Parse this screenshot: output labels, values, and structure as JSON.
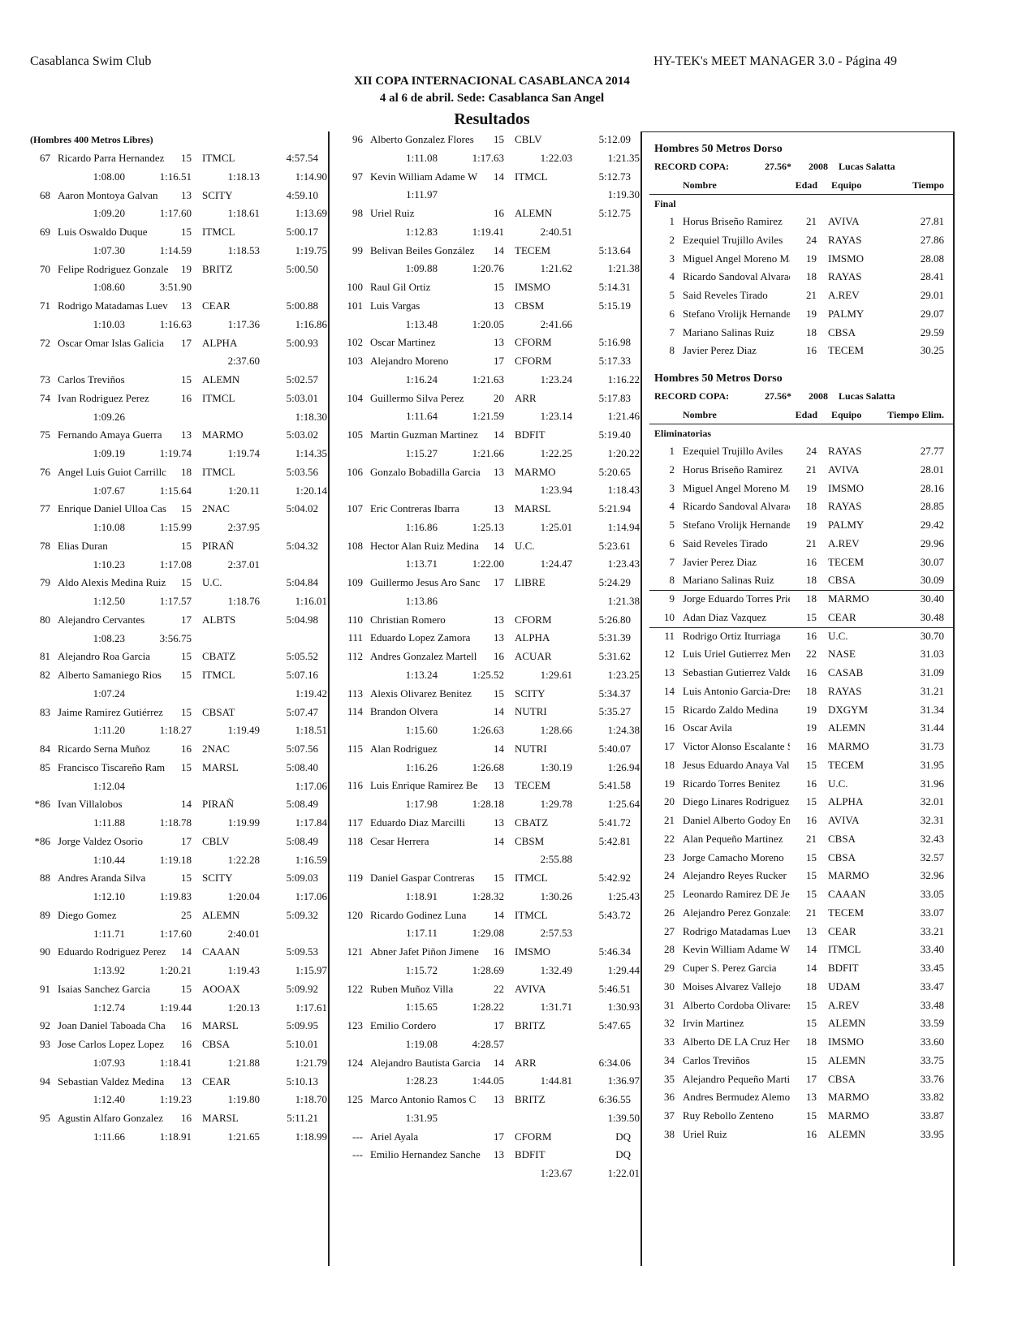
{
  "header": {
    "left": "Casablanca Swim Club",
    "right": "HY-TEK's MEET MANAGER 3.0 - Página 49",
    "title": "XII COPA INTERNACIONAL CASABLANCA 2014",
    "subtitle": "4 al 6 de abril. Sede: Casablanca San Angel",
    "heading": "Resultados"
  },
  "event_400": {
    "title": "(Hombres 400 Metros Libres)",
    "col1": [
      [
        "67",
        "Ricardo Parra Hernandez",
        "15",
        "ITMCL",
        "4:57.54",
        [
          "1:08.00",
          "1:16.51",
          "1:18.13",
          "1:14.90"
        ]
      ],
      [
        "68",
        "Aaron Montoya Galvan",
        "13",
        "SCITY",
        "4:59.10",
        [
          "1:09.20",
          "1:17.60",
          "1:18.61",
          "1:13.69"
        ]
      ],
      [
        "69",
        "Luis Oswaldo Duque",
        "15",
        "ITMCL",
        "5:00.17",
        [
          "1:07.30",
          "1:14.59",
          "1:18.53",
          "1:19.75"
        ]
      ],
      [
        "70",
        "Felipe Rodriguez Gonzale",
        "19",
        "BRITZ",
        "5:00.50",
        [
          "1:08.60",
          "3:51.90",
          null,
          null
        ]
      ],
      [
        "71",
        "Rodrigo Matadamas Luev",
        "13",
        "CEAR",
        "5:00.88",
        [
          "1:10.03",
          "1:16.63",
          "1:17.36",
          "1:16.86"
        ]
      ],
      [
        "72",
        "Oscar Omar Islas Galicia",
        "17",
        "ALPHA",
        "5:00.93",
        [
          null,
          null,
          "2:37.60",
          null
        ]
      ],
      [
        "73",
        "Carlos Treviños",
        "15",
        "ALEMN",
        "5:02.57"
      ],
      [
        "74",
        "Ivan Rodriguez Perez",
        "16",
        "ITMCL",
        "5:03.01",
        [
          "1:09.26",
          null,
          null,
          "1:18.30"
        ]
      ],
      [
        "75",
        "Fernando Amaya Guerra",
        "13",
        "MARMO",
        "5:03.02",
        [
          "1:09.19",
          "1:19.74",
          "1:19.74",
          "1:14.35"
        ]
      ],
      [
        "76",
        "Angel Luis Guiot Carrillc",
        "18",
        "ITMCL",
        "5:03.56",
        [
          "1:07.67",
          "1:15.64",
          "1:20.11",
          "1:20.14"
        ]
      ],
      [
        "77",
        "Enrique Daniel Ulloa Cas",
        "15",
        "2NAC",
        "5:04.02",
        [
          "1:10.08",
          "1:15.99",
          "2:37.95",
          null
        ]
      ],
      [
        "78",
        "Elias Duran",
        "15",
        "PIRAÑ",
        "5:04.32",
        [
          "1:10.23",
          "1:17.08",
          "2:37.01",
          null
        ]
      ],
      [
        "79",
        "Aldo Alexis Medina Ruiz",
        "15",
        "U.C.",
        "5:04.84",
        [
          "1:12.50",
          "1:17.57",
          "1:18.76",
          "1:16.01"
        ]
      ],
      [
        "80",
        "Alejandro Cervantes",
        "17",
        "ALBTS",
        "5:04.98",
        [
          "1:08.23",
          "3:56.75",
          null,
          null
        ]
      ],
      [
        "81",
        "Alejandro Roa Garcia",
        "15",
        "CBATZ",
        "5:05.52"
      ],
      [
        "82",
        "Alberto Samaniego Rios",
        "15",
        "ITMCL",
        "5:07.16",
        [
          "1:07.24",
          null,
          null,
          "1:19.42"
        ]
      ],
      [
        "83",
        "Jaime Ramirez Gutiérrez",
        "15",
        "CBSAT",
        "5:07.47",
        [
          "1:11.20",
          "1:18.27",
          "1:19.49",
          "1:18.51"
        ]
      ],
      [
        "84",
        "Ricardo Serna Muñoz",
        "16",
        "2NAC",
        "5:07.56"
      ],
      [
        "85",
        "Francisco Tiscareño Ram",
        "15",
        "MARSL",
        "5:08.40",
        [
          "1:12.04",
          null,
          null,
          "1:17.06"
        ]
      ],
      [
        "*86",
        "Ivan Villalobos",
        "14",
        "PIRAÑ",
        "5:08.49",
        [
          "1:11.88",
          "1:18.78",
          "1:19.99",
          "1:17.84"
        ]
      ],
      [
        "*86",
        "Jorge Valdez Osorio",
        "17",
        "CBLV",
        "5:08.49",
        [
          "1:10.44",
          "1:19.18",
          "1:22.28",
          "1:16.59"
        ]
      ],
      [
        "88",
        "Andres Aranda Silva",
        "15",
        "SCITY",
        "5:09.03",
        [
          "1:12.10",
          "1:19.83",
          "1:20.04",
          "1:17.06"
        ]
      ],
      [
        "89",
        "Diego Gomez",
        "25",
        "ALEMN",
        "5:09.32",
        [
          "1:11.71",
          "1:17.60",
          "2:40.01",
          null
        ]
      ],
      [
        "90",
        "Eduardo Rodriguez Perez",
        "14",
        "CAAAN",
        "5:09.53",
        [
          "1:13.92",
          "1:20.21",
          "1:19.43",
          "1:15.97"
        ]
      ],
      [
        "91",
        "Isaias Sanchez Garcia",
        "15",
        "AOOAX",
        "5:09.92",
        [
          "1:12.74",
          "1:19.44",
          "1:20.13",
          "1:17.61"
        ]
      ],
      [
        "92",
        "Joan Daniel Taboada Cha",
        "16",
        "MARSL",
        "5:09.95"
      ],
      [
        "93",
        "Jose Carlos Lopez Lopez",
        "16",
        "CBSA",
        "5:10.01",
        [
          "1:07.93",
          "1:18.41",
          "1:21.88",
          "1:21.79"
        ]
      ],
      [
        "94",
        "Sebastian Valdez Medina",
        "13",
        "CEAR",
        "5:10.13",
        [
          "1:12.40",
          "1:19.23",
          "1:19.80",
          "1:18.70"
        ]
      ],
      [
        "95",
        "Agustin Alfaro Gonzalez",
        "16",
        "MARSL",
        "5:11.21",
        [
          "1:11.66",
          "1:18.91",
          "1:21.65",
          "1:18.99"
        ]
      ]
    ],
    "col2": [
      [
        "96",
        "Alberto Gonzalez Flores",
        "15",
        "CBLV",
        "5:12.09",
        [
          "1:11.08",
          "1:17.63",
          "1:22.03",
          "1:21.35"
        ]
      ],
      [
        "97",
        "Kevin William Adame W",
        "14",
        "ITMCL",
        "5:12.73",
        [
          "1:11.97",
          null,
          null,
          "1:19.30"
        ]
      ],
      [
        "98",
        "Uriel Ruiz",
        "16",
        "ALEMN",
        "5:12.75",
        [
          "1:12.83",
          "1:19.41",
          "2:40.51",
          null
        ]
      ],
      [
        "99",
        "Belivan Beiles González",
        "14",
        "TECEM",
        "5:13.64",
        [
          "1:09.88",
          "1:20.76",
          "1:21.62",
          "1:21.38"
        ]
      ],
      [
        "100",
        "Raul Gil Ortiz",
        "15",
        "IMSMO",
        "5:14.31"
      ],
      [
        "101",
        "Luis Vargas",
        "13",
        "CBSM",
        "5:15.19",
        [
          "1:13.48",
          "1:20.05",
          "2:41.66",
          null
        ]
      ],
      [
        "102",
        "Oscar Martinez",
        "13",
        "CFORM",
        "5:16.98"
      ],
      [
        "103",
        "Alejandro Moreno",
        "17",
        "CFORM",
        "5:17.33",
        [
          "1:16.24",
          "1:21.63",
          "1:23.24",
          "1:16.22"
        ]
      ],
      [
        "104",
        "Guillermo Silva Perez",
        "20",
        "ARR",
        "5:17.83",
        [
          "1:11.64",
          "1:21.59",
          "1:23.14",
          "1:21.46"
        ]
      ],
      [
        "105",
        "Martin Guzman Martinez",
        "14",
        "BDFIT",
        "5:19.40",
        [
          "1:15.27",
          "1:21.66",
          "1:22.25",
          "1:20.22"
        ]
      ],
      [
        "106",
        "Gonzalo Bobadilla Garcia",
        "13",
        "MARMO",
        "5:20.65",
        [
          null,
          null,
          "1:23.94",
          "1:18.43"
        ]
      ],
      [
        "107",
        "Eric Contreras Ibarra",
        "13",
        "MARSL",
        "5:21.94",
        [
          "1:16.86",
          "1:25.13",
          "1:25.01",
          "1:14.94"
        ]
      ],
      [
        "108",
        "Hector Alan Ruiz Medina",
        "14",
        "U.C.",
        "5:23.61",
        [
          "1:13.71",
          "1:22.00",
          "1:24.47",
          "1:23.43"
        ]
      ],
      [
        "109",
        "Guillermo Jesus Aro Sanc",
        "17",
        "LIBRE",
        "5:24.29",
        [
          "1:13.86",
          null,
          null,
          "1:21.38"
        ]
      ],
      [
        "110",
        "Christian Romero",
        "13",
        "CFORM",
        "5:26.80"
      ],
      [
        "111",
        "Eduardo Lopez Zamora",
        "13",
        "ALPHA",
        "5:31.39"
      ],
      [
        "112",
        "Andres Gonzalez Martell",
        "16",
        "ACUAR",
        "5:31.62",
        [
          "1:13.24",
          "1:25.52",
          "1:29.61",
          "1:23.25"
        ]
      ],
      [
        "113",
        "Alexis Olivarez Benitez",
        "15",
        "SCITY",
        "5:34.37"
      ],
      [
        "114",
        "Brandon Olvera",
        "14",
        "NUTRI",
        "5:35.27",
        [
          "1:15.60",
          "1:26.63",
          "1:28.66",
          "1:24.38"
        ]
      ],
      [
        "115",
        "Alan Rodriguez",
        "14",
        "NUTRI",
        "5:40.07",
        [
          "1:16.26",
          "1:26.68",
          "1:30.19",
          "1:26.94"
        ]
      ],
      [
        "116",
        "Luis Enrique Ramirez Be",
        "13",
        "TECEM",
        "5:41.58",
        [
          "1:17.98",
          "1:28.18",
          "1:29.78",
          "1:25.64"
        ]
      ],
      [
        "117",
        "Eduardo Diaz Marcilli",
        "13",
        "CBATZ",
        "5:41.72"
      ],
      [
        "118",
        "Cesar Herrera",
        "14",
        "CBSM",
        "5:42.81",
        [
          null,
          null,
          "2:55.88",
          null
        ]
      ],
      [
        "119",
        "Daniel Gaspar Contreras",
        "15",
        "ITMCL",
        "5:42.92",
        [
          "1:18.91",
          "1:28.32",
          "1:30.26",
          "1:25.43"
        ]
      ],
      [
        "120",
        "Ricardo Godinez Luna",
        "14",
        "ITMCL",
        "5:43.72",
        [
          "1:17.11",
          "1:29.08",
          "2:57.53",
          null
        ]
      ],
      [
        "121",
        "Abner Jafet Piñon Jimene",
        "16",
        "IMSMO",
        "5:46.34",
        [
          "1:15.72",
          "1:28.69",
          "1:32.49",
          "1:29.44"
        ]
      ],
      [
        "122",
        "Ruben Muñoz Villa",
        "22",
        "AVIVA",
        "5:46.51",
        [
          "1:15.65",
          "1:28.22",
          "1:31.71",
          "1:30.93"
        ]
      ],
      [
        "123",
        "Emilio Cordero",
        "17",
        "BRITZ",
        "5:47.65",
        [
          "1:19.08",
          "4:28.57",
          null,
          null
        ]
      ],
      [
        "124",
        "Alejandro Bautista Garcia",
        "14",
        "ARR",
        "6:34.06",
        [
          "1:28.23",
          "1:44.05",
          "1:44.81",
          "1:36.97"
        ]
      ],
      [
        "125",
        "Marco Antonio Ramos C",
        "13",
        "BRITZ",
        "6:36.55",
        [
          "1:31.95",
          null,
          null,
          "1:39.50"
        ]
      ],
      [
        "---",
        "Ariel Ayala",
        "17",
        "CFORM",
        "DQ"
      ],
      [
        "---",
        "Emilio Hernandez Sanche",
        "13",
        "BDFIT",
        "DQ",
        [
          null,
          null,
          "1:23.67",
          "1:22.01"
        ]
      ]
    ]
  },
  "sections": [
    {
      "title": "Hombres 50 Metros Dorso",
      "record": [
        "RECORD COPA:",
        "27.56*",
        "2008",
        "Lucas Salatta"
      ],
      "headers": [
        "Nombre",
        "Edad",
        "Equipo",
        "Tiempo"
      ],
      "round": "Final",
      "rows": [
        [
          "1",
          "Horus Briseño Ramirez",
          "21",
          "AVIVA",
          "27.81"
        ],
        [
          "2",
          "Ezequiel Trujillo Aviles",
          "24",
          "RAYAS",
          "27.86"
        ],
        [
          "3",
          "Miguel Angel Moreno Ma",
          "19",
          "IMSMO",
          "28.08"
        ],
        [
          "4",
          "Ricardo Sandoval Alvarad",
          "18",
          "RAYAS",
          "28.41"
        ],
        [
          "5",
          "Said Reveles Tirado",
          "21",
          "A.REV",
          "29.01"
        ],
        [
          "6",
          "Stefano Vrolijk Hernande",
          "19",
          "PALMY",
          "29.07"
        ],
        [
          "7",
          "Mariano Salinas Ruiz",
          "18",
          "CBSA",
          "29.59"
        ],
        [
          "8",
          "Javier Perez Diaz",
          "16",
          "TECEM",
          "30.25"
        ]
      ]
    },
    {
      "title": "Hombres 50 Metros Dorso",
      "record": [
        "RECORD COPA:",
        "27.56*",
        "2008",
        "Lucas Salatta"
      ],
      "headers": [
        "Nombre",
        "Edad",
        "Equipo",
        "Tiempo Elim."
      ],
      "round": "Eliminatorias",
      "rows": [
        [
          "1",
          "Ezequiel Trujillo Aviles",
          "24",
          "RAYAS",
          "27.77"
        ],
        [
          "2",
          "Horus Briseño Ramirez",
          "21",
          "AVIVA",
          "28.01"
        ],
        [
          "3",
          "Miguel Angel Moreno Ma",
          "19",
          "IMSMO",
          "28.16"
        ],
        [
          "4",
          "Ricardo Sandoval Alvarad",
          "18",
          "RAYAS",
          "28.85"
        ],
        [
          "5",
          "Stefano Vrolijk Hernande",
          "19",
          "PALMY",
          "29.42"
        ],
        [
          "6",
          "Said Reveles Tirado",
          "21",
          "A.REV",
          "29.96"
        ],
        [
          "7",
          "Javier Perez Diaz",
          "16",
          "TECEM",
          "30.07"
        ],
        [
          "8",
          "Mariano Salinas Ruiz",
          "18",
          "CBSA",
          "30.09"
        ],
        [
          "9",
          "Jorge Eduardo Torres Prie",
          "18",
          "MARMO",
          "30.40"
        ],
        [
          "10",
          "Adan Diaz Vazquez",
          "15",
          "CEAR",
          "30.48"
        ],
        [
          "11",
          "Rodrigo Ortiz Iturriaga",
          "16",
          "U.C.",
          "30.70"
        ],
        [
          "12",
          "Luis Uriel Gutierrez Merc",
          "22",
          "NASE",
          "31.03"
        ],
        [
          "13",
          "Sebastian Gutierrez Valde",
          "16",
          "CASAB",
          "31.09"
        ],
        [
          "14",
          "Luis Antonio Garcia-Dres",
          "18",
          "RAYAS",
          "31.21"
        ],
        [
          "15",
          "Ricardo Zaldo Medina",
          "19",
          "DXGYM",
          "31.34"
        ],
        [
          "16",
          "Oscar Avila",
          "19",
          "ALEMN",
          "31.44"
        ],
        [
          "17",
          "Victor Alonso Escalante S",
          "16",
          "MARMO",
          "31.73"
        ],
        [
          "18",
          "Jesus Eduardo Anaya Val",
          "15",
          "TECEM",
          "31.95"
        ],
        [
          "19",
          "Ricardo Torres Benitez",
          "16",
          "U.C.",
          "31.96"
        ],
        [
          "20",
          "Diego Linares Rodriguez",
          "15",
          "ALPHA",
          "32.01"
        ],
        [
          "21",
          "Daniel Alberto Godoy En",
          "16",
          "AVIVA",
          "32.31"
        ],
        [
          "22",
          "Alan Pequeño Martinez",
          "21",
          "CBSA",
          "32.43"
        ],
        [
          "23",
          "Jorge Camacho Moreno",
          "15",
          "CBSA",
          "32.57"
        ],
        [
          "24",
          "Alejandro Reyes Rucker",
          "15",
          "MARMO",
          "32.96"
        ],
        [
          "25",
          "Leonardo Ramirez DE Je",
          "15",
          "CAAAN",
          "33.05"
        ],
        [
          "26",
          "Alejandro Perez Gonzalez",
          "21",
          "TECEM",
          "33.07"
        ],
        [
          "27",
          "Rodrigo Matadamas Luev",
          "13",
          "CEAR",
          "33.21"
        ],
        [
          "28",
          "Kevin William Adame W",
          "14",
          "ITMCL",
          "33.40"
        ],
        [
          "29",
          "Cuper S. Perez Garcia",
          "14",
          "BDFIT",
          "33.45"
        ],
        [
          "30",
          "Moises Alvarez Vallejo",
          "18",
          "UDAM",
          "33.47"
        ],
        [
          "31",
          "Alberto Cordoba Olivares",
          "15",
          "A.REV",
          "33.48"
        ],
        [
          "32",
          "Irvin Martinez",
          "15",
          "ALEMN",
          "33.59"
        ],
        [
          "33",
          "Alberto DE LA Cruz Hern",
          "18",
          "IMSMO",
          "33.60"
        ],
        [
          "34",
          "Carlos Treviños",
          "15",
          "ALEMN",
          "33.75"
        ],
        [
          "35",
          "Alejandro Pequeño Martin",
          "17",
          "CBSA",
          "33.76"
        ],
        [
          "36",
          "Andres Bermudez Alemon",
          "13",
          "MARMO",
          "33.82"
        ],
        [
          "37",
          "Ruy Rebollo Zenteno",
          "15",
          "MARMO",
          "33.87"
        ],
        [
          "38",
          "Uriel Ruiz",
          "16",
          "ALEMN",
          "33.95"
        ]
      ]
    }
  ]
}
